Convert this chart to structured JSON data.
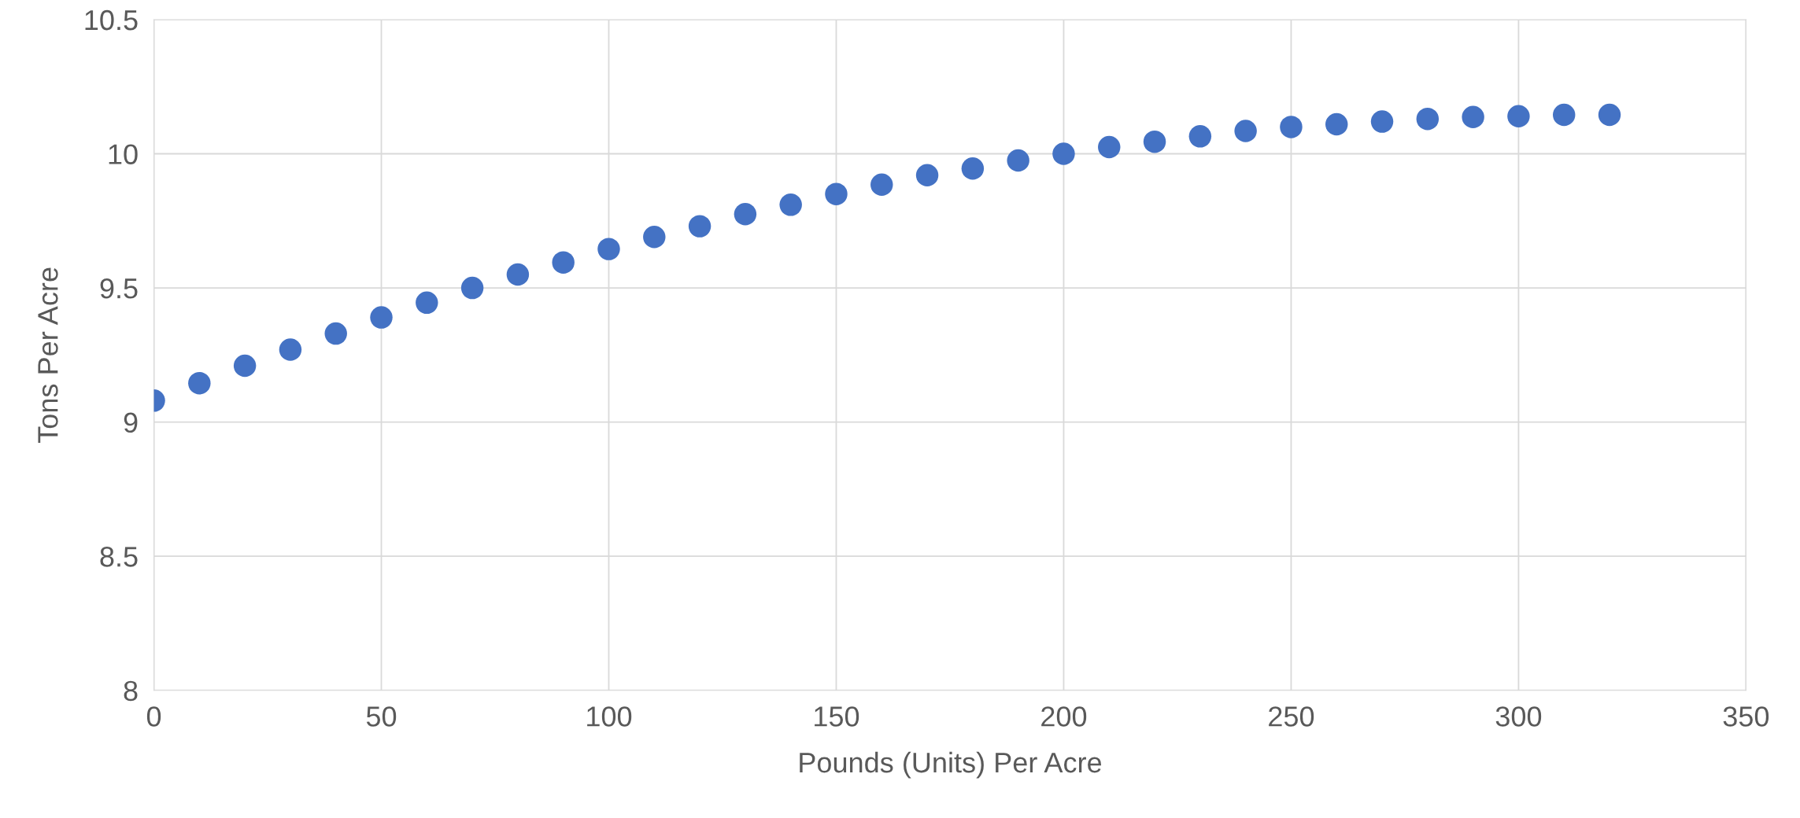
{
  "chart_data": {
    "type": "scatter",
    "xlabel": "Pounds (Units) Per Acre",
    "ylabel": "Tons Per Acre",
    "x": [
      0,
      10,
      20,
      30,
      40,
      50,
      60,
      70,
      80,
      90,
      100,
      110,
      120,
      130,
      140,
      150,
      160,
      170,
      180,
      190,
      200,
      210,
      220,
      230,
      240,
      250,
      260,
      270,
      280,
      290,
      300,
      310,
      320
    ],
    "series": [
      {
        "color": "#4472c4",
        "values": [
          9.08,
          9.145,
          9.21,
          9.27,
          9.33,
          9.39,
          9.445,
          9.5,
          9.55,
          9.595,
          9.645,
          9.69,
          9.73,
          9.775,
          9.81,
          9.85,
          9.885,
          9.92,
          9.945,
          9.975,
          10.0,
          10.025,
          10.045,
          10.065,
          10.085,
          10.1,
          10.11,
          10.12,
          10.13,
          10.137,
          10.14,
          10.145,
          10.145
        ]
      }
    ],
    "xlim": [
      0,
      350
    ],
    "xticks": [
      0,
      50,
      100,
      150,
      200,
      250,
      300,
      350
    ],
    "ylim": [
      8,
      10.5
    ],
    "yticks": [
      8,
      8.5,
      9,
      9.5,
      10,
      10.5
    ],
    "grid": true,
    "marker": "circle",
    "legend": false
  }
}
